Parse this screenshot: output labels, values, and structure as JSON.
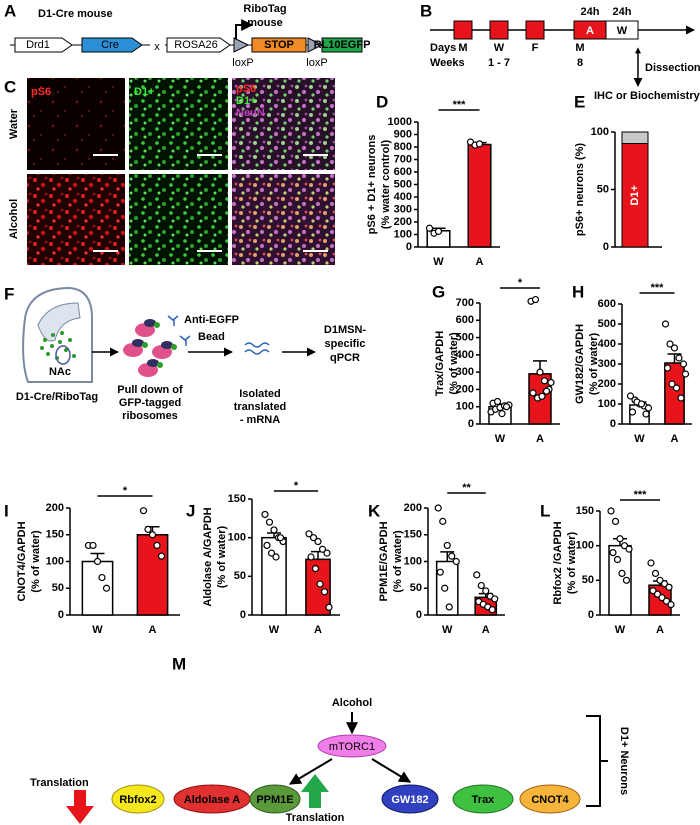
{
  "panel_a": {
    "label": "A",
    "title": "D1-Cre mouse",
    "gene": "Drd1",
    "cre": "Cre",
    "cross": "x",
    "title2": [
      "RiboTag",
      "mouse"
    ],
    "locus": "ROSA26",
    "stop": "STOP",
    "reporter": "RL10EGFP",
    "loxp": [
      "loxP",
      "loxP"
    ]
  },
  "panel_b": {
    "label": "B",
    "durations": [
      "24h",
      "24h"
    ],
    "sessions": [
      "A",
      "W"
    ],
    "days_label": "Days",
    "days": [
      "M",
      "W",
      "F",
      "M"
    ],
    "weeks_label": "Weeks",
    "weeks": [
      "1 - 7",
      "8"
    ],
    "endpoint": "Dissection",
    "assay": "IHC or Biochemistry"
  },
  "panel_c": {
    "label": "C",
    "rows": [
      "Water",
      "Alcohol"
    ],
    "channels": [
      "pS6",
      "D1+"
    ],
    "merge": [
      "pS6",
      "D1+",
      "NeuN"
    ]
  },
  "panel_f": {
    "label": "F",
    "region": "NAc",
    "model": "D1-Cre/RiboTag",
    "antibody": "Anti-EGFP",
    "bead": "Bead",
    "step1": [
      "Pull down of",
      "GFP-tagged",
      "ribosomes"
    ],
    "step2": [
      "Isolated",
      "translated",
      "- mRNA"
    ],
    "step3": [
      "D1MSN-",
      "specific",
      "qPCR"
    ]
  },
  "panel_m": {
    "label": "M",
    "stimulus": "Alcohol",
    "hub": "mTORC1",
    "down": [
      "Rbfox2",
      "Aldolase A",
      "PPM1E"
    ],
    "up": [
      "GW182",
      "Trax",
      "CNOT4"
    ],
    "effect": [
      "Translation",
      "Translation"
    ],
    "cell": "D1+ Neurons"
  },
  "chart_data": [
    {
      "type": "bar",
      "panel": "D",
      "ylabel": [
        "pS6 + D1+ neurons",
        "(% water control)"
      ],
      "categories": [
        "W",
        "A"
      ],
      "values": [
        130,
        820
      ],
      "errors": [
        20,
        15
      ],
      "colors": [
        "#ffffff",
        "#e8141b"
      ],
      "points": [
        [
          150,
          110,
          125
        ],
        [
          840,
          815,
          825
        ]
      ],
      "significance": "***",
      "ylim": [
        0,
        1000
      ],
      "yticks": [
        0,
        100,
        200,
        300,
        400,
        500,
        600,
        700,
        800,
        900,
        1000
      ]
    },
    {
      "type": "stacked_bar",
      "panel": "E",
      "ylabel": [
        "pS6+ neurons (%)"
      ],
      "series": [
        {
          "name": "D1+",
          "color": "#e8141b",
          "values": [
            90
          ]
        },
        {
          "color": "#c8c8c8",
          "values": [
            10
          ]
        }
      ],
      "ylim": [
        0,
        100
      ],
      "yticks": [
        0,
        50,
        100
      ]
    },
    {
      "type": "bar",
      "panel": "G",
      "ylabel": [
        "Trax/GAPDH",
        "(% of water)"
      ],
      "categories": [
        "W",
        "A"
      ],
      "values": [
        100,
        290
      ],
      "errors": [
        15,
        75
      ],
      "colors": [
        "#ffffff",
        "#e8141b"
      ],
      "points": [
        [
          70,
          85,
          95,
          105,
          110,
          120,
          130,
          60,
          100
        ],
        [
          710,
          720,
          300,
          250,
          200,
          180,
          150,
          160,
          190,
          240
        ]
      ],
      "significance": "*",
      "ylim": [
        0,
        700
      ],
      "yticks": [
        0,
        100,
        200,
        300,
        400,
        500,
        600,
        700
      ]
    },
    {
      "type": "bar",
      "panel": "H",
      "ylabel": [
        "GW182/GAPDH",
        "(% of water)"
      ],
      "categories": [
        "W",
        "A"
      ],
      "values": [
        95,
        305
      ],
      "errors": [
        15,
        45
      ],
      "colors": [
        "#ffffff",
        "#e8141b"
      ],
      "points": [
        [
          140,
          120,
          100,
          90,
          80,
          60,
          110,
          100,
          50
        ],
        [
          500,
          400,
          380,
          330,
          300,
          280,
          200,
          180,
          130,
          250
        ]
      ],
      "significance": "***",
      "ylim": [
        0,
        600
      ],
      "yticks": [
        0,
        100,
        200,
        300,
        400,
        500,
        600
      ]
    },
    {
      "type": "bar",
      "panel": "I",
      "ylabel": [
        "CNOT4/GAPDH",
        "(% of water)"
      ],
      "categories": [
        "W",
        "A"
      ],
      "values": [
        100,
        150
      ],
      "errors": [
        15,
        15
      ],
      "colors": [
        "#ffffff",
        "#e8141b"
      ],
      "points": [
        [
          130,
          130,
          100,
          70,
          50
        ],
        [
          195,
          160,
          150,
          130,
          110
        ]
      ],
      "significance": "*",
      "ylim": [
        0,
        200
      ],
      "yticks": [
        0,
        50,
        100,
        150,
        200
      ]
    },
    {
      "type": "bar",
      "panel": "J",
      "ylabel": [
        "Aldolase A/GAPDH",
        "(% of water)"
      ],
      "categories": [
        "W",
        "A"
      ],
      "values": [
        100,
        72
      ],
      "errors": [
        6,
        10
      ],
      "colors": [
        "#ffffff",
        "#e8141b"
      ],
      "points": [
        [
          130,
          120,
          110,
          100,
          95,
          90,
          80,
          75,
          100
        ],
        [
          105,
          100,
          95,
          85,
          80,
          75,
          60,
          40,
          30,
          10
        ]
      ],
      "significance": "*",
      "ylim": [
        0,
        150
      ],
      "yticks": [
        0,
        50,
        100,
        150
      ]
    },
    {
      "type": "bar",
      "panel": "K",
      "ylabel": [
        "PPM1E/GAPDH",
        "(% of water)"
      ],
      "categories": [
        "W",
        "A"
      ],
      "values": [
        100,
        33
      ],
      "errors": [
        18,
        7
      ],
      "colors": [
        "#ffffff",
        "#e8141b"
      ],
      "points": [
        [
          200,
          175,
          130,
          110,
          100,
          80,
          50,
          15
        ],
        [
          75,
          55,
          45,
          35,
          30,
          25,
          20,
          15,
          10
        ]
      ],
      "significance": "**",
      "ylim": [
        0,
        200
      ],
      "yticks": [
        0,
        50,
        100,
        150,
        200
      ]
    },
    {
      "type": "bar",
      "panel": "L",
      "ylabel": [
        "Rbfox2 /GAPDH",
        "(% of water)"
      ],
      "categories": [
        "W",
        "A"
      ],
      "values": [
        100,
        43
      ],
      "errors": [
        10,
        6
      ],
      "colors": [
        "#ffffff",
        "#e8141b"
      ],
      "points": [
        [
          150,
          135,
          110,
          100,
          95,
          90,
          80,
          60,
          50
        ],
        [
          75,
          60,
          50,
          45,
          40,
          35,
          30,
          25,
          20,
          15
        ]
      ],
      "significance": "***",
      "ylim": [
        0,
        150
      ],
      "yticks": [
        0,
        50,
        100,
        150
      ]
    }
  ]
}
